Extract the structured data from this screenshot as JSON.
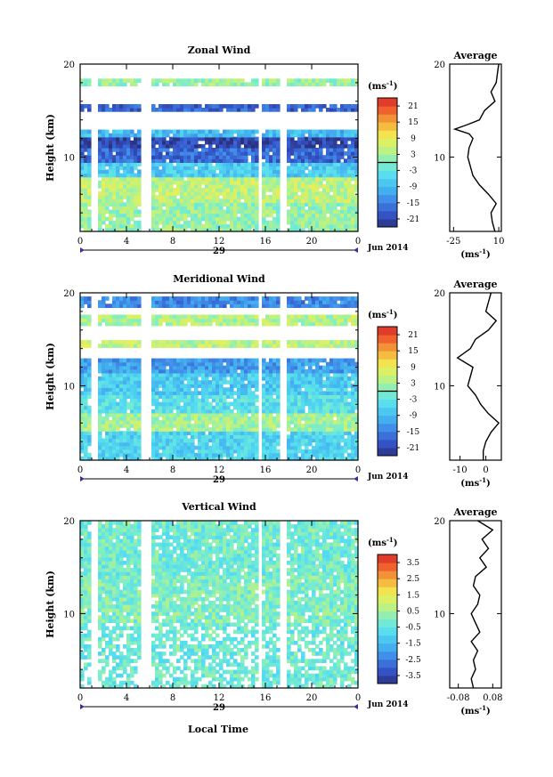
{
  "common": {
    "time_label": "Local Time",
    "date_day": "29",
    "date_month": "Jun 2014",
    "x_ticks": [
      "0",
      "4",
      "8",
      "12",
      "16",
      "20",
      "0"
    ],
    "y_ticks": [
      "20",
      "10"
    ],
    "unit_label": "(ms",
    "unit_sup": "-1",
    "unit_close": ")",
    "gap_hours": [
      [
        1.0,
        1.5
      ],
      [
        5.2,
        6.2
      ],
      [
        15.3,
        15.8
      ],
      [
        17.3,
        17.9
      ]
    ]
  },
  "chart_data": [
    {
      "type": "heatmap",
      "title": "Zonal Wind",
      "xlabel": "",
      "ylabel": "Height (km)",
      "xlim": [
        0,
        24
      ],
      "ylim": [
        2,
        20
      ],
      "colorbar_ticks": [
        "21",
        "15",
        "9",
        "3",
        "-3",
        "-9",
        "-15",
        "-21"
      ],
      "colorbar_range": [
        -24,
        24
      ],
      "colorbar_zero_line": 0,
      "profile_title": "Average",
      "profile_xticks": [
        "-25",
        "10"
      ],
      "profile_xlim": [
        -28,
        12
      ],
      "profile_height": [
        2,
        3,
        4,
        5,
        6,
        7,
        8,
        9,
        10,
        11,
        12,
        12.5,
        13,
        13.5,
        14,
        15,
        16,
        17,
        18,
        19,
        20
      ],
      "profile_value": [
        7,
        5,
        4,
        8,
        2,
        -5,
        -10,
        -12,
        -14,
        -13,
        -10,
        -13,
        -24,
        -14,
        -5,
        -1,
        7,
        4,
        8,
        9,
        10
      ],
      "field": [
        {
          "h": [
            2,
            5
          ],
          "v": 2
        },
        {
          "h": [
            5,
            8
          ],
          "v": 5
        },
        {
          "h": [
            8,
            9.5
          ],
          "v": -7
        },
        {
          "h": [
            9.5,
            11
          ],
          "v": -17
        },
        {
          "h": [
            11,
            12
          ],
          "v": -21
        },
        {
          "h": [
            12,
            13
          ],
          "v": -9
        },
        {
          "h": [
            14.8,
            15.8
          ],
          "v": -18
        },
        {
          "h": [
            17.5,
            18.5
          ],
          "v": 2
        }
      ]
    },
    {
      "type": "heatmap",
      "title": "Meridional Wind",
      "xlabel": "",
      "ylabel": "Height (km)",
      "xlim": [
        0,
        24
      ],
      "ylim": [
        2,
        20
      ],
      "colorbar_ticks": [
        "21",
        "15",
        "9",
        "3",
        "-3",
        "-9",
        "-15",
        "-21"
      ],
      "colorbar_range": [
        -24,
        24
      ],
      "colorbar_zero_line": 0,
      "profile_title": "Average",
      "profile_xticks": [
        "-10",
        "0"
      ],
      "profile_xlim": [
        -14,
        6
      ],
      "profile_height": [
        2,
        3,
        4,
        5,
        6,
        7,
        8,
        9,
        10,
        11,
        12,
        13,
        14,
        15,
        16,
        17,
        18,
        19,
        20
      ],
      "profile_value": [
        -1,
        -1,
        0,
        2,
        5,
        1,
        -2,
        -4,
        -7,
        -6,
        -5,
        -11,
        -6,
        -4,
        1,
        4,
        0,
        1,
        2
      ],
      "field": [
        {
          "h": [
            2,
            5
          ],
          "v": -6
        },
        {
          "h": [
            5,
            7
          ],
          "v": 3
        },
        {
          "h": [
            7,
            9
          ],
          "v": -4
        },
        {
          "h": [
            9,
            11.5
          ],
          "v": -7
        },
        {
          "h": [
            11.5,
            13
          ],
          "v": -12
        },
        {
          "h": [
            14,
            15
          ],
          "v": 5
        },
        {
          "h": [
            16.5,
            17.5
          ],
          "v": 4
        },
        {
          "h": [
            18.5,
            19.5
          ],
          "v": -14
        }
      ]
    },
    {
      "type": "heatmap",
      "title": "Vertical Wind",
      "xlabel": "Local Time",
      "ylabel": "Height (km)",
      "xlim": [
        0,
        24
      ],
      "ylim": [
        2,
        20
      ],
      "colorbar_ticks": [
        "3.5",
        "2.5",
        "1.5",
        "0.5",
        "-0.5",
        "-1.5",
        "-2.5",
        "-3.5"
      ],
      "colorbar_range": [
        -4,
        4
      ],
      "colorbar_zero_line": null,
      "profile_title": "Average",
      "profile_xticks": [
        "-0.08",
        "0.08"
      ],
      "profile_xlim": [
        -0.12,
        0.12
      ],
      "profile_height": [
        2,
        3,
        4,
        5,
        6,
        7,
        8,
        9,
        10,
        11,
        12,
        13,
        14,
        15,
        16,
        17,
        18,
        19,
        20
      ],
      "profile_value": [
        -0.01,
        -0.02,
        0.0,
        -0.01,
        0.01,
        -0.02,
        0.02,
        0.0,
        -0.02,
        0.01,
        0.02,
        -0.01,
        0.0,
        0.05,
        0.02,
        0.06,
        0.03,
        0.08,
        0.01
      ],
      "field": [
        {
          "h": [
            2,
            9
          ],
          "v": -0.3
        },
        {
          "h": [
            9,
            14
          ],
          "v": 0.0
        },
        {
          "h": [
            14,
            20
          ],
          "v": -0.2
        }
      ]
    }
  ]
}
